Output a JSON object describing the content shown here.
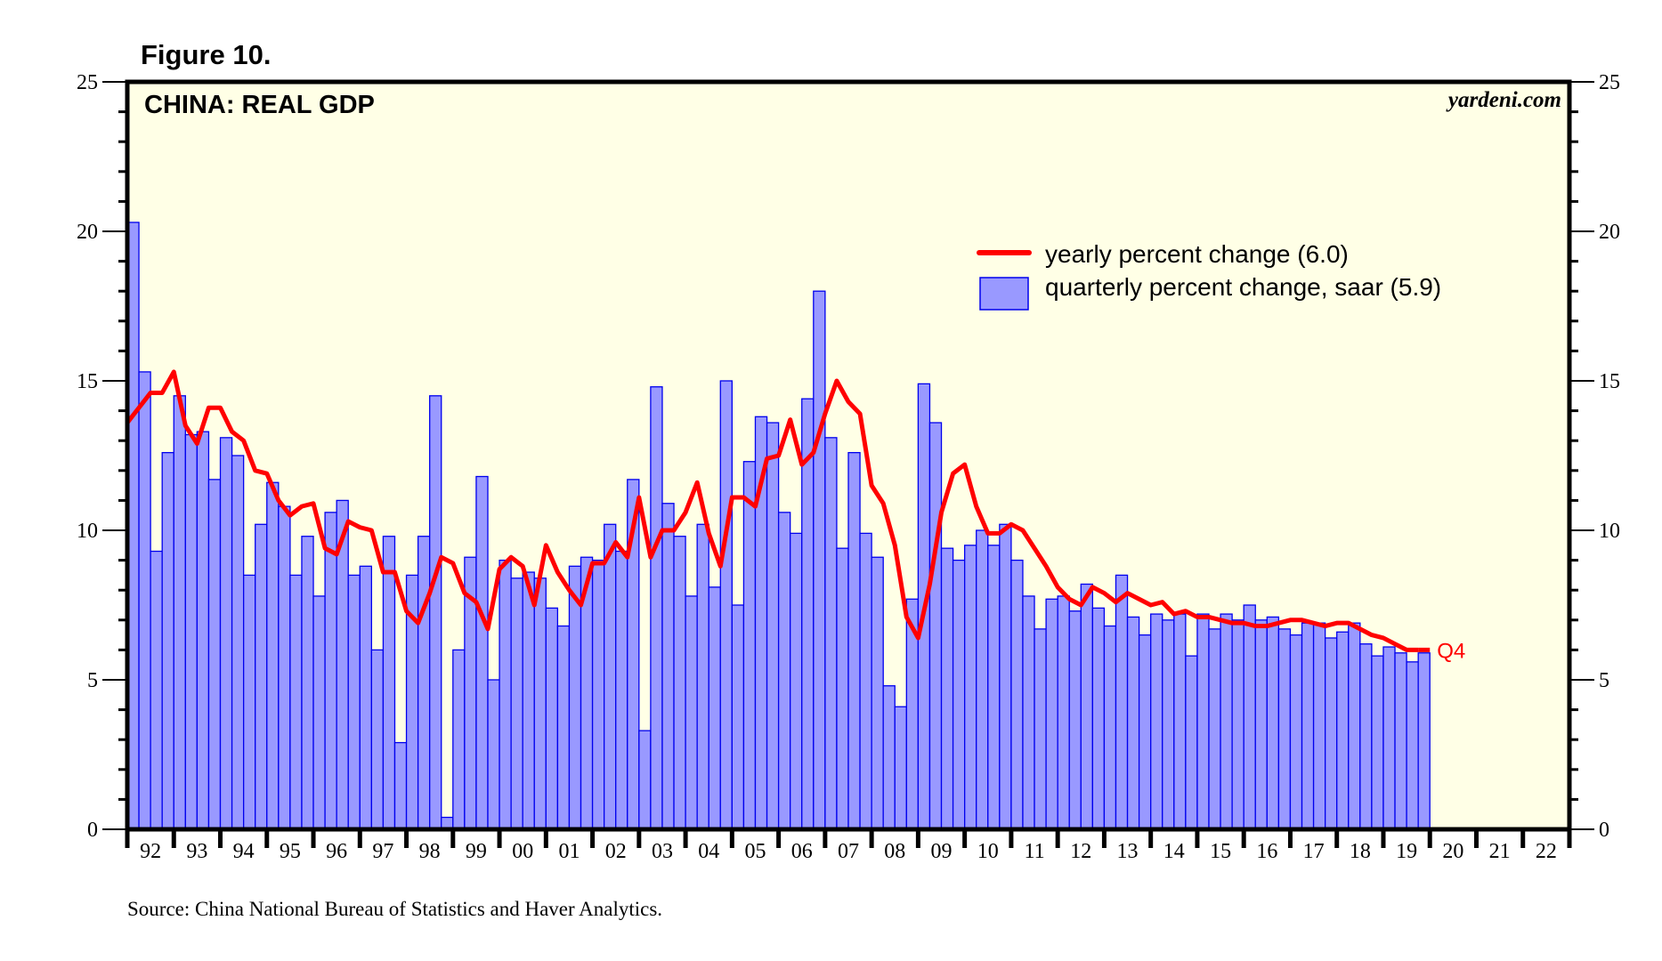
{
  "figure_label": "Figure 10.",
  "source_note": "Source: China National Bureau of Statistics and Haver Analytics.",
  "colors": {
    "plot_background": "#ffffe6",
    "bar_fill": "#9999ff",
    "bar_stroke": "#0000ee",
    "line": "#ff0000",
    "axis": "#000000"
  },
  "chart_data": {
    "type": "bar+line",
    "title": "CHINA: REAL GDP",
    "brand": "yardeni.com",
    "xlabel": "",
    "ylabel": "",
    "ylim": [
      0,
      25
    ],
    "yticks": [
      0,
      5,
      10,
      15,
      20,
      25
    ],
    "y_minor_step": 1,
    "xlim_years": [
      1992,
      2023
    ],
    "x_tick_labels": [
      "92",
      "93",
      "94",
      "95",
      "96",
      "97",
      "98",
      "99",
      "00",
      "01",
      "02",
      "03",
      "04",
      "05",
      "06",
      "07",
      "08",
      "09",
      "10",
      "11",
      "12",
      "13",
      "14",
      "15",
      "16",
      "17",
      "18",
      "19",
      "20",
      "21",
      "22"
    ],
    "grid": false,
    "legend_position": "upper-right",
    "start_period": "1992Q1",
    "frequency": "quarterly",
    "end_label": "Q4",
    "series": [
      {
        "name": "quarterly percent change, saar (5.9)",
        "kind": "bar",
        "values": [
          20.3,
          15.3,
          9.3,
          12.6,
          14.5,
          13.2,
          13.3,
          11.7,
          13.1,
          12.5,
          8.5,
          10.2,
          11.6,
          10.8,
          8.5,
          9.8,
          7.8,
          10.6,
          11.0,
          8.5,
          8.8,
          6.0,
          9.8,
          2.9,
          8.5,
          9.8,
          14.5,
          0.4,
          6.0,
          9.1,
          11.8,
          5.0,
          9.0,
          8.4,
          8.6,
          8.4,
          7.4,
          6.8,
          8.8,
          9.1,
          9.0,
          10.2,
          9.3,
          11.7,
          3.3,
          14.8,
          10.9,
          9.8,
          7.8,
          10.2,
          8.1,
          15.0,
          7.5,
          12.3,
          13.8,
          13.6,
          10.6,
          9.9,
          14.4,
          18.0,
          13.1,
          9.4,
          12.6,
          9.9,
          9.1,
          4.8,
          4.1,
          7.7,
          14.9,
          13.6,
          9.4,
          9.0,
          9.5,
          10.0,
          9.5,
          10.2,
          9.0,
          7.8,
          6.7,
          7.7,
          7.8,
          7.3,
          8.2,
          7.4,
          6.8,
          8.5,
          7.1,
          6.5,
          7.2,
          7.0,
          7.2,
          5.8,
          7.2,
          6.7,
          7.2,
          7.0,
          7.5,
          7.0,
          7.1,
          6.7,
          6.5,
          6.9,
          6.9,
          6.4,
          6.6,
          6.9,
          6.2,
          5.8,
          6.1,
          5.9,
          5.6,
          5.9
        ]
      },
      {
        "name": "yearly percent change (6.0)",
        "kind": "line",
        "values": [
          13.6,
          14.1,
          14.6,
          14.6,
          15.3,
          13.5,
          12.9,
          14.1,
          14.1,
          13.3,
          13.0,
          12.0,
          11.9,
          11.0,
          10.5,
          10.8,
          10.9,
          9.4,
          9.2,
          10.3,
          10.1,
          10.0,
          8.6,
          8.6,
          7.3,
          6.9,
          7.9,
          9.1,
          8.9,
          7.9,
          7.6,
          6.7,
          8.7,
          9.1,
          8.8,
          7.5,
          9.5,
          8.6,
          8.0,
          7.5,
          8.9,
          8.9,
          9.6,
          9.1,
          11.1,
          9.1,
          10.0,
          10.0,
          10.6,
          11.6,
          9.9,
          8.8,
          11.1,
          11.1,
          10.8,
          12.4,
          12.5,
          13.7,
          12.2,
          12.6,
          13.9,
          15.0,
          14.3,
          13.9,
          11.5,
          10.9,
          9.5,
          7.1,
          6.4,
          8.2,
          10.6,
          11.9,
          12.2,
          10.8,
          9.9,
          9.9,
          10.2,
          10.0,
          9.4,
          8.8,
          8.1,
          7.7,
          7.5,
          8.1,
          7.9,
          7.6,
          7.9,
          7.7,
          7.5,
          7.6,
          7.2,
          7.3,
          7.1,
          7.1,
          7.0,
          6.9,
          6.9,
          6.8,
          6.8,
          6.9,
          7.0,
          7.0,
          6.9,
          6.8,
          6.9,
          6.9,
          6.7,
          6.5,
          6.4,
          6.2,
          6.0,
          6.0
        ]
      }
    ]
  }
}
